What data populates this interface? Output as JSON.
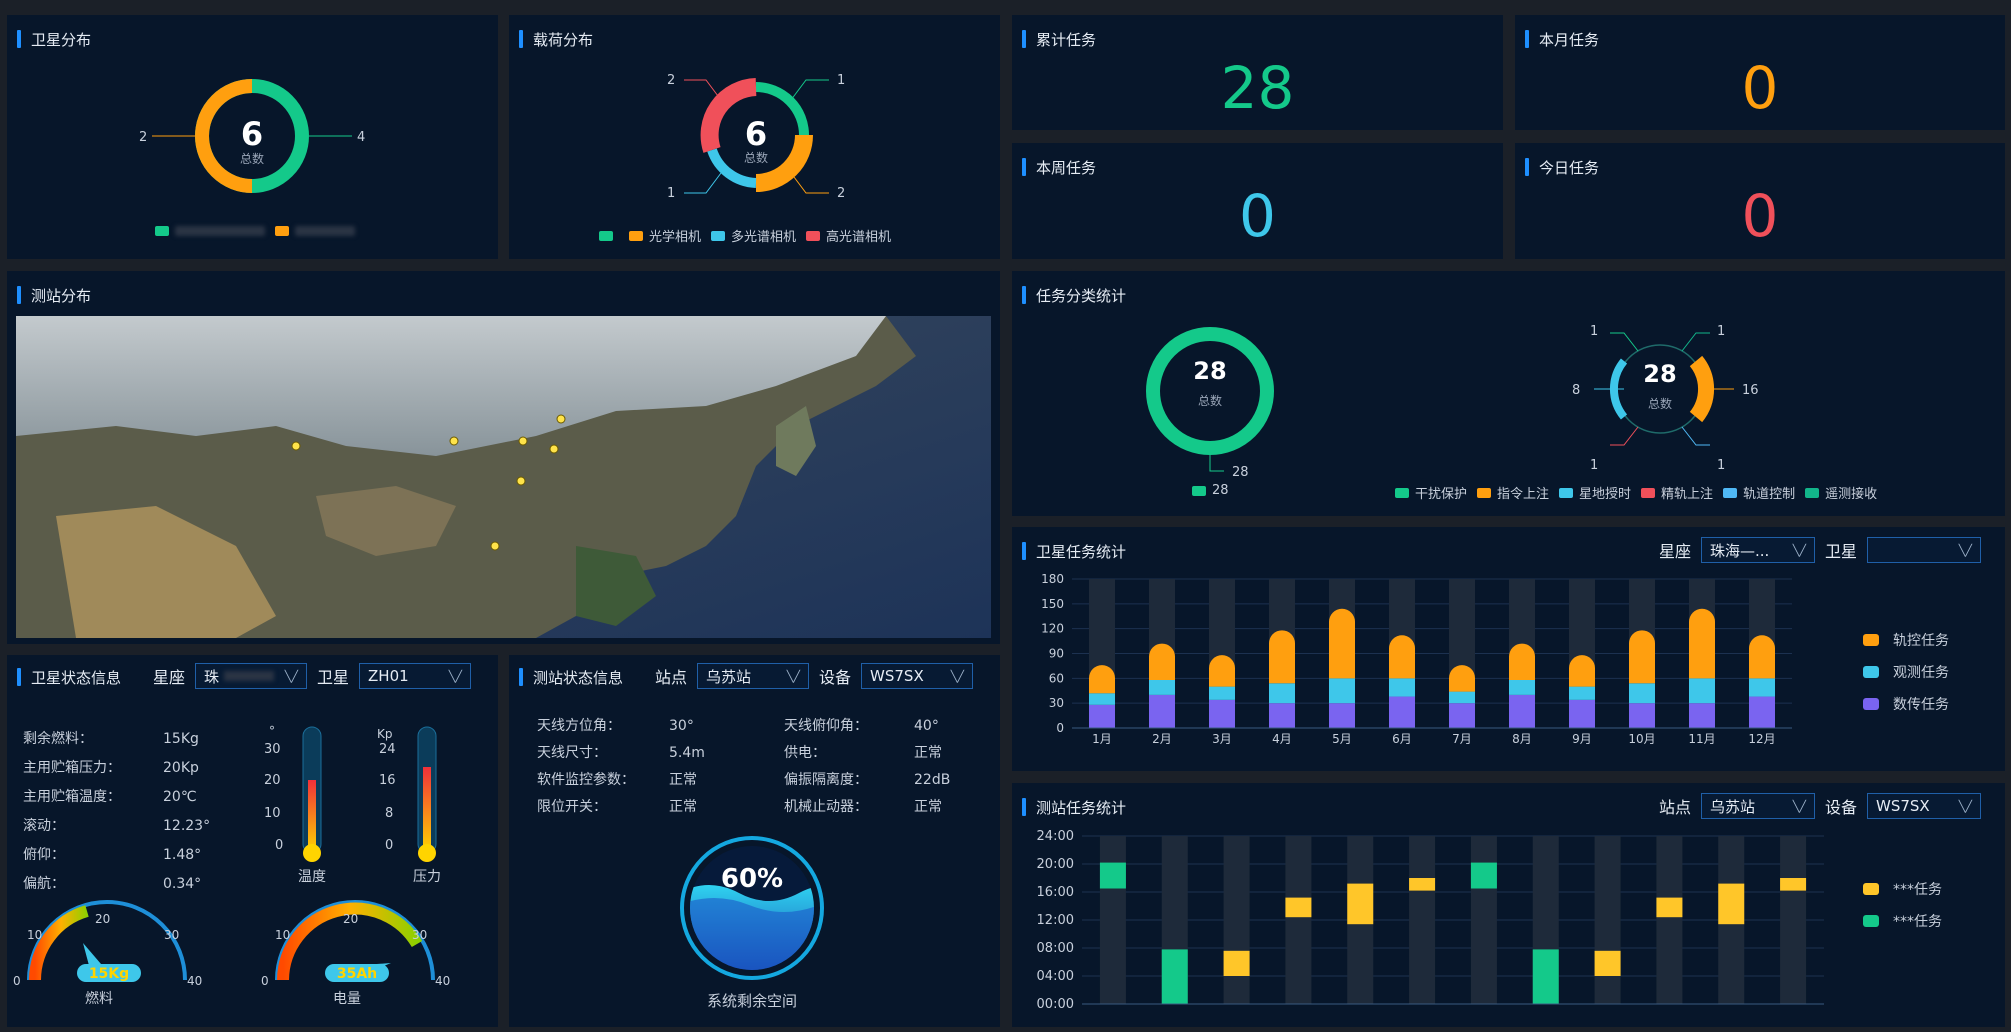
{
  "colors": {
    "green": "#14c98a",
    "orange": "#ff9f0f",
    "cyan": "#3ec7ea",
    "red": "#f0505a",
    "purple": "#7a64f0",
    "yellow": "#ffc629",
    "panel": "#07162a",
    "accent": "#1e8fff"
  },
  "sat_dist": {
    "title": "卫星分布",
    "total": "6",
    "total_label": "总数",
    "left_value": "2",
    "right_value": "4",
    "legend": [
      {
        "label": "",
        "color": "#14c98a"
      },
      {
        "label": "",
        "color": "#ff9f0f"
      }
    ]
  },
  "payload_dist": {
    "title": "载荷分布",
    "total": "6",
    "total_label": "总数",
    "callouts": {
      "top_left": "2",
      "top_right": "1",
      "bottom_left": "1",
      "bottom_right": "2"
    },
    "legend": [
      {
        "label": "",
        "color": "#14c98a"
      },
      {
        "label": "光学相机",
        "color": "#ff9f0f"
      },
      {
        "label": "多光谱相机",
        "color": "#3ec7ea"
      },
      {
        "label": "高光谱相机",
        "color": "#f0505a"
      }
    ]
  },
  "tasks": {
    "cumulative": {
      "title": "累计任务",
      "value": "28",
      "color": "#14c98a"
    },
    "month": {
      "title": "本月任务",
      "value": "0",
      "color": "#ff9f0f"
    },
    "week": {
      "title": "本周任务",
      "value": "0",
      "color": "#3ec7ea"
    },
    "today": {
      "title": "今日任务",
      "value": "0",
      "color": "#f0505a"
    }
  },
  "station_dist": {
    "title": "测站分布"
  },
  "task_class": {
    "title": "任务分类统计",
    "left": {
      "total": "28",
      "total_label": "总数",
      "callout": "28",
      "legend_label": "28"
    },
    "right": {
      "total": "28",
      "total_label": "总数",
      "callouts": {
        "top_left": "1",
        "top_right": "1",
        "left": "8",
        "right": "16",
        "bottom_left": "1",
        "bottom_right": "1"
      }
    },
    "legend": [
      {
        "label": "干扰保护",
        "color": "#14c98a"
      },
      {
        "label": "指令上注",
        "color": "#ff9f0f"
      },
      {
        "label": "星地授时",
        "color": "#3ec7ea"
      },
      {
        "label": "精轨上注",
        "color": "#f0505a"
      },
      {
        "label": "轨道控制",
        "color": "#4fb8f5"
      },
      {
        "label": "遥测接收",
        "color": "#12b58a"
      }
    ]
  },
  "sat_task": {
    "title": "卫星任务统计",
    "constellation_label": "星座",
    "constellation_value": "珠海—...",
    "satellite_label": "卫星",
    "satellite_value": "",
    "legend": [
      {
        "label": "轨控任务",
        "color": "#ff9f0f"
      },
      {
        "label": "观测任务",
        "color": "#3ec7ea"
      },
      {
        "label": "数传任务",
        "color": "#7a64f0"
      }
    ]
  },
  "station_task": {
    "title": "测站任务统计",
    "station_label": "站点",
    "station_value": "乌苏站",
    "device_label": "设备",
    "device_value": "WS7SX",
    "legend": [
      {
        "label": "***任务",
        "color": "#ffc629"
      },
      {
        "label": "***任务",
        "color": "#14c98a"
      }
    ]
  },
  "sat_status": {
    "title": "卫星状态信息",
    "constellation_label": "星座",
    "constellation_value": "珠",
    "satellite_label": "卫星",
    "satellite_value": "ZH01",
    "rows": [
      {
        "k": "剩余燃料：",
        "v": "15Kg"
      },
      {
        "k": "主用贮箱压力：",
        "v": "20Kp"
      },
      {
        "k": "主用贮箱温度：",
        "v": "20℃"
      },
      {
        "k": "滚动：",
        "v": "12.23°"
      },
      {
        "k": "俯仰：",
        "v": "1.48°"
      },
      {
        "k": "偏航：",
        "v": "0.34°"
      }
    ],
    "temp_unit": "°",
    "pressure_unit": "Kp",
    "temp_label": "温度",
    "pressure_label": "压力",
    "fuel_value": "15Kg",
    "fuel_label": "燃料",
    "power_value": "35Ah",
    "power_label": "电量"
  },
  "station_status": {
    "title": "测站状态信息",
    "station_label": "站点",
    "station_value": "乌苏站",
    "device_label": "设备",
    "device_value": "WS7SX",
    "rows": [
      {
        "k": "天线方位角：",
        "v": "30°"
      },
      {
        "k": "天线俯仰角：",
        "v": "40°"
      },
      {
        "k": "天线尺寸：",
        "v": "5.4m"
      },
      {
        "k": "供电：",
        "v": "正常"
      },
      {
        "k": "软件监控参数：",
        "v": "正常"
      },
      {
        "k": "偏振隔离度：",
        "v": "22dB"
      },
      {
        "k": "限位开关：",
        "v": "正常"
      },
      {
        "k": "机械止动器：",
        "v": "正常"
      }
    ],
    "space_value": "60%",
    "space_label": "系统剩余空间"
  },
  "chart_data": [
    {
      "type": "bar",
      "name": "卫星任务统计",
      "stacked": true,
      "categories": [
        "1月",
        "2月",
        "3月",
        "4月",
        "5月",
        "6月",
        "7月",
        "8月",
        "9月",
        "10月",
        "11月",
        "12月"
      ],
      "ylim": [
        0,
        180
      ],
      "yticks": [
        0,
        30,
        60,
        90,
        120,
        150,
        180
      ],
      "series": [
        {
          "name": "数传任务",
          "color": "#7a64f0",
          "values": [
            28,
            40,
            34,
            30,
            30,
            38,
            30,
            40,
            34,
            30,
            30,
            38
          ]
        },
        {
          "name": "观测任务",
          "color": "#3ec7ea",
          "values": [
            14,
            18,
            16,
            24,
            30,
            22,
            14,
            18,
            16,
            24,
            30,
            22
          ]
        },
        {
          "name": "轨控任务",
          "color": "#ff9f0f",
          "values": [
            34,
            44,
            38,
            64,
            84,
            52,
            32,
            44,
            38,
            64,
            84,
            52
          ]
        }
      ]
    },
    {
      "type": "bar",
      "name": "测站任务统计",
      "floating": true,
      "yticks": [
        "00:00",
        "04:00",
        "08:00",
        "12:00",
        "16:00",
        "20:00",
        "24:00"
      ],
      "ylim": [
        0,
        24
      ],
      "bars": [
        {
          "slot": 0,
          "from": 16.5,
          "to": 20.2,
          "series": "green"
        },
        {
          "slot": 1,
          "from": 0,
          "to": 7.8,
          "series": "green"
        },
        {
          "slot": 2,
          "from": 4,
          "to": 7.6,
          "series": "yellow"
        },
        {
          "slot": 3,
          "from": 12.4,
          "to": 15.2,
          "series": "yellow"
        },
        {
          "slot": 4,
          "from": 11.4,
          "to": 17.2,
          "series": "yellow"
        },
        {
          "slot": 5,
          "from": 16.2,
          "to": 18,
          "series": "yellow"
        },
        {
          "slot": 6,
          "from": 16.5,
          "to": 20.2,
          "series": "green"
        },
        {
          "slot": 7,
          "from": 0,
          "to": 7.8,
          "series": "green"
        },
        {
          "slot": 8,
          "from": 4,
          "to": 7.6,
          "series": "yellow"
        },
        {
          "slot": 9,
          "from": 12.4,
          "to": 15.2,
          "series": "yellow"
        },
        {
          "slot": 10,
          "from": 11.4,
          "to": 17.2,
          "series": "yellow"
        },
        {
          "slot": 11,
          "from": 16.2,
          "to": 18,
          "series": "yellow"
        }
      ]
    }
  ]
}
